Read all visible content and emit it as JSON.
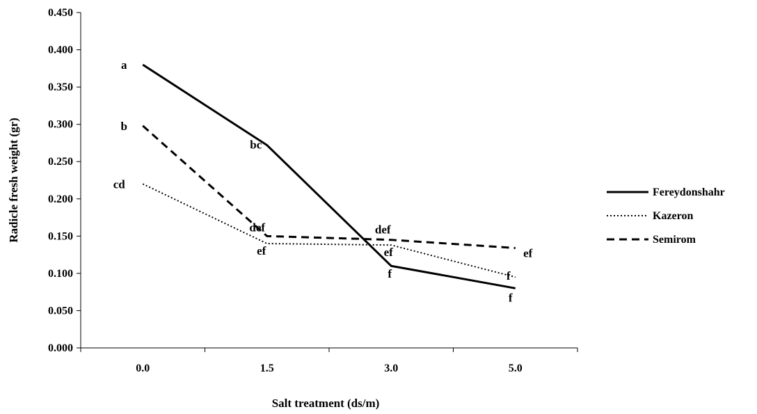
{
  "chart_data": {
    "type": "line",
    "categories": [
      "0.0",
      "1.5",
      "3.0",
      "5.0"
    ],
    "xlabel": "Salt treatment (ds/m)",
    "ylabel": "Radicle fresh weight (gr)",
    "ylim": [
      0,
      0.45
    ],
    "y_ticks": [
      "0.000",
      "0.050",
      "0.100",
      "0.150",
      "0.200",
      "0.250",
      "0.300",
      "0.350",
      "0.400",
      "0.450"
    ],
    "grid": false,
    "legend_position": "right",
    "series": [
      {
        "name": "Fereydonshahr",
        "style": "solid",
        "values": [
          0.38,
          0.272,
          0.11,
          0.08
        ],
        "labels": [
          "a",
          "bc",
          "f",
          "f"
        ]
      },
      {
        "name": "Kazeron",
        "style": "dotted",
        "values": [
          0.22,
          0.14,
          0.138,
          0.095
        ],
        "labels": [
          "cd",
          "ef",
          "ef",
          "f"
        ]
      },
      {
        "name": "Semirom",
        "style": "dashed",
        "values": [
          0.298,
          0.15,
          0.145,
          0.134
        ],
        "labels": [
          "b",
          "def",
          "def",
          "ef"
        ]
      }
    ]
  }
}
